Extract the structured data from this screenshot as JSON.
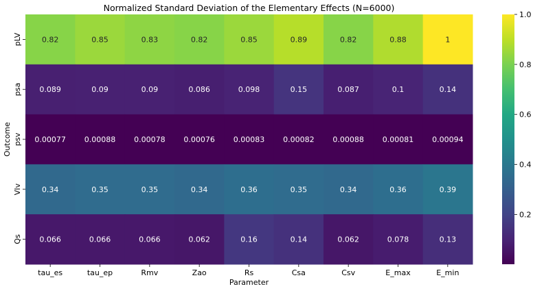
{
  "chart_data": {
    "type": "heatmap",
    "title": "Normalized Standard Deviation of the Elementary Effects (N=6000)",
    "xlabel": "Parameter",
    "ylabel": "Outcome",
    "x_categories": [
      "tau_es",
      "tau_ep",
      "Rmv",
      "Zao",
      "Rs",
      "Csa",
      "Csv",
      "E_max",
      "E_min"
    ],
    "y_categories": [
      "pLV",
      "psa",
      "psv",
      "Vlv",
      "Qs"
    ],
    "values": [
      [
        0.82,
        0.85,
        0.83,
        0.82,
        0.85,
        0.89,
        0.82,
        0.88,
        1
      ],
      [
        0.089,
        0.09,
        0.09,
        0.086,
        0.098,
        0.15,
        0.087,
        0.1,
        0.14
      ],
      [
        0.00077,
        0.00088,
        0.00078,
        0.00076,
        0.00083,
        0.00082,
        0.00088,
        0.00081,
        0.00094
      ],
      [
        0.34,
        0.35,
        0.35,
        0.34,
        0.36,
        0.35,
        0.34,
        0.36,
        0.39
      ],
      [
        0.066,
        0.066,
        0.066,
        0.062,
        0.16,
        0.14,
        0.062,
        0.078,
        0.13
      ]
    ],
    "value_labels": [
      [
        "0.82",
        "0.85",
        "0.83",
        "0.82",
        "0.85",
        "0.89",
        "0.82",
        "0.88",
        "1"
      ],
      [
        "0.089",
        "0.09",
        "0.09",
        "0.086",
        "0.098",
        "0.15",
        "0.087",
        "0.1",
        "0.14"
      ],
      [
        "0.00077",
        "0.00088",
        "0.00078",
        "0.00076",
        "0.00083",
        "0.00082",
        "0.00088",
        "0.00081",
        "0.00094"
      ],
      [
        "0.34",
        "0.35",
        "0.35",
        "0.34",
        "0.36",
        "0.35",
        "0.34",
        "0.36",
        "0.39"
      ],
      [
        "0.066",
        "0.066",
        "0.066",
        "0.062",
        "0.16",
        "0.14",
        "0.062",
        "0.078",
        "0.13"
      ]
    ],
    "colormap": "viridis",
    "colorbar": {
      "range": [
        0,
        1
      ],
      "ticks": [
        0.2,
        0.4,
        0.6,
        0.8,
        1.0
      ],
      "tick_labels": [
        "0.2",
        "0.4",
        "0.6",
        "0.8",
        "1.0"
      ],
      "placement": "right"
    },
    "grid": false
  }
}
